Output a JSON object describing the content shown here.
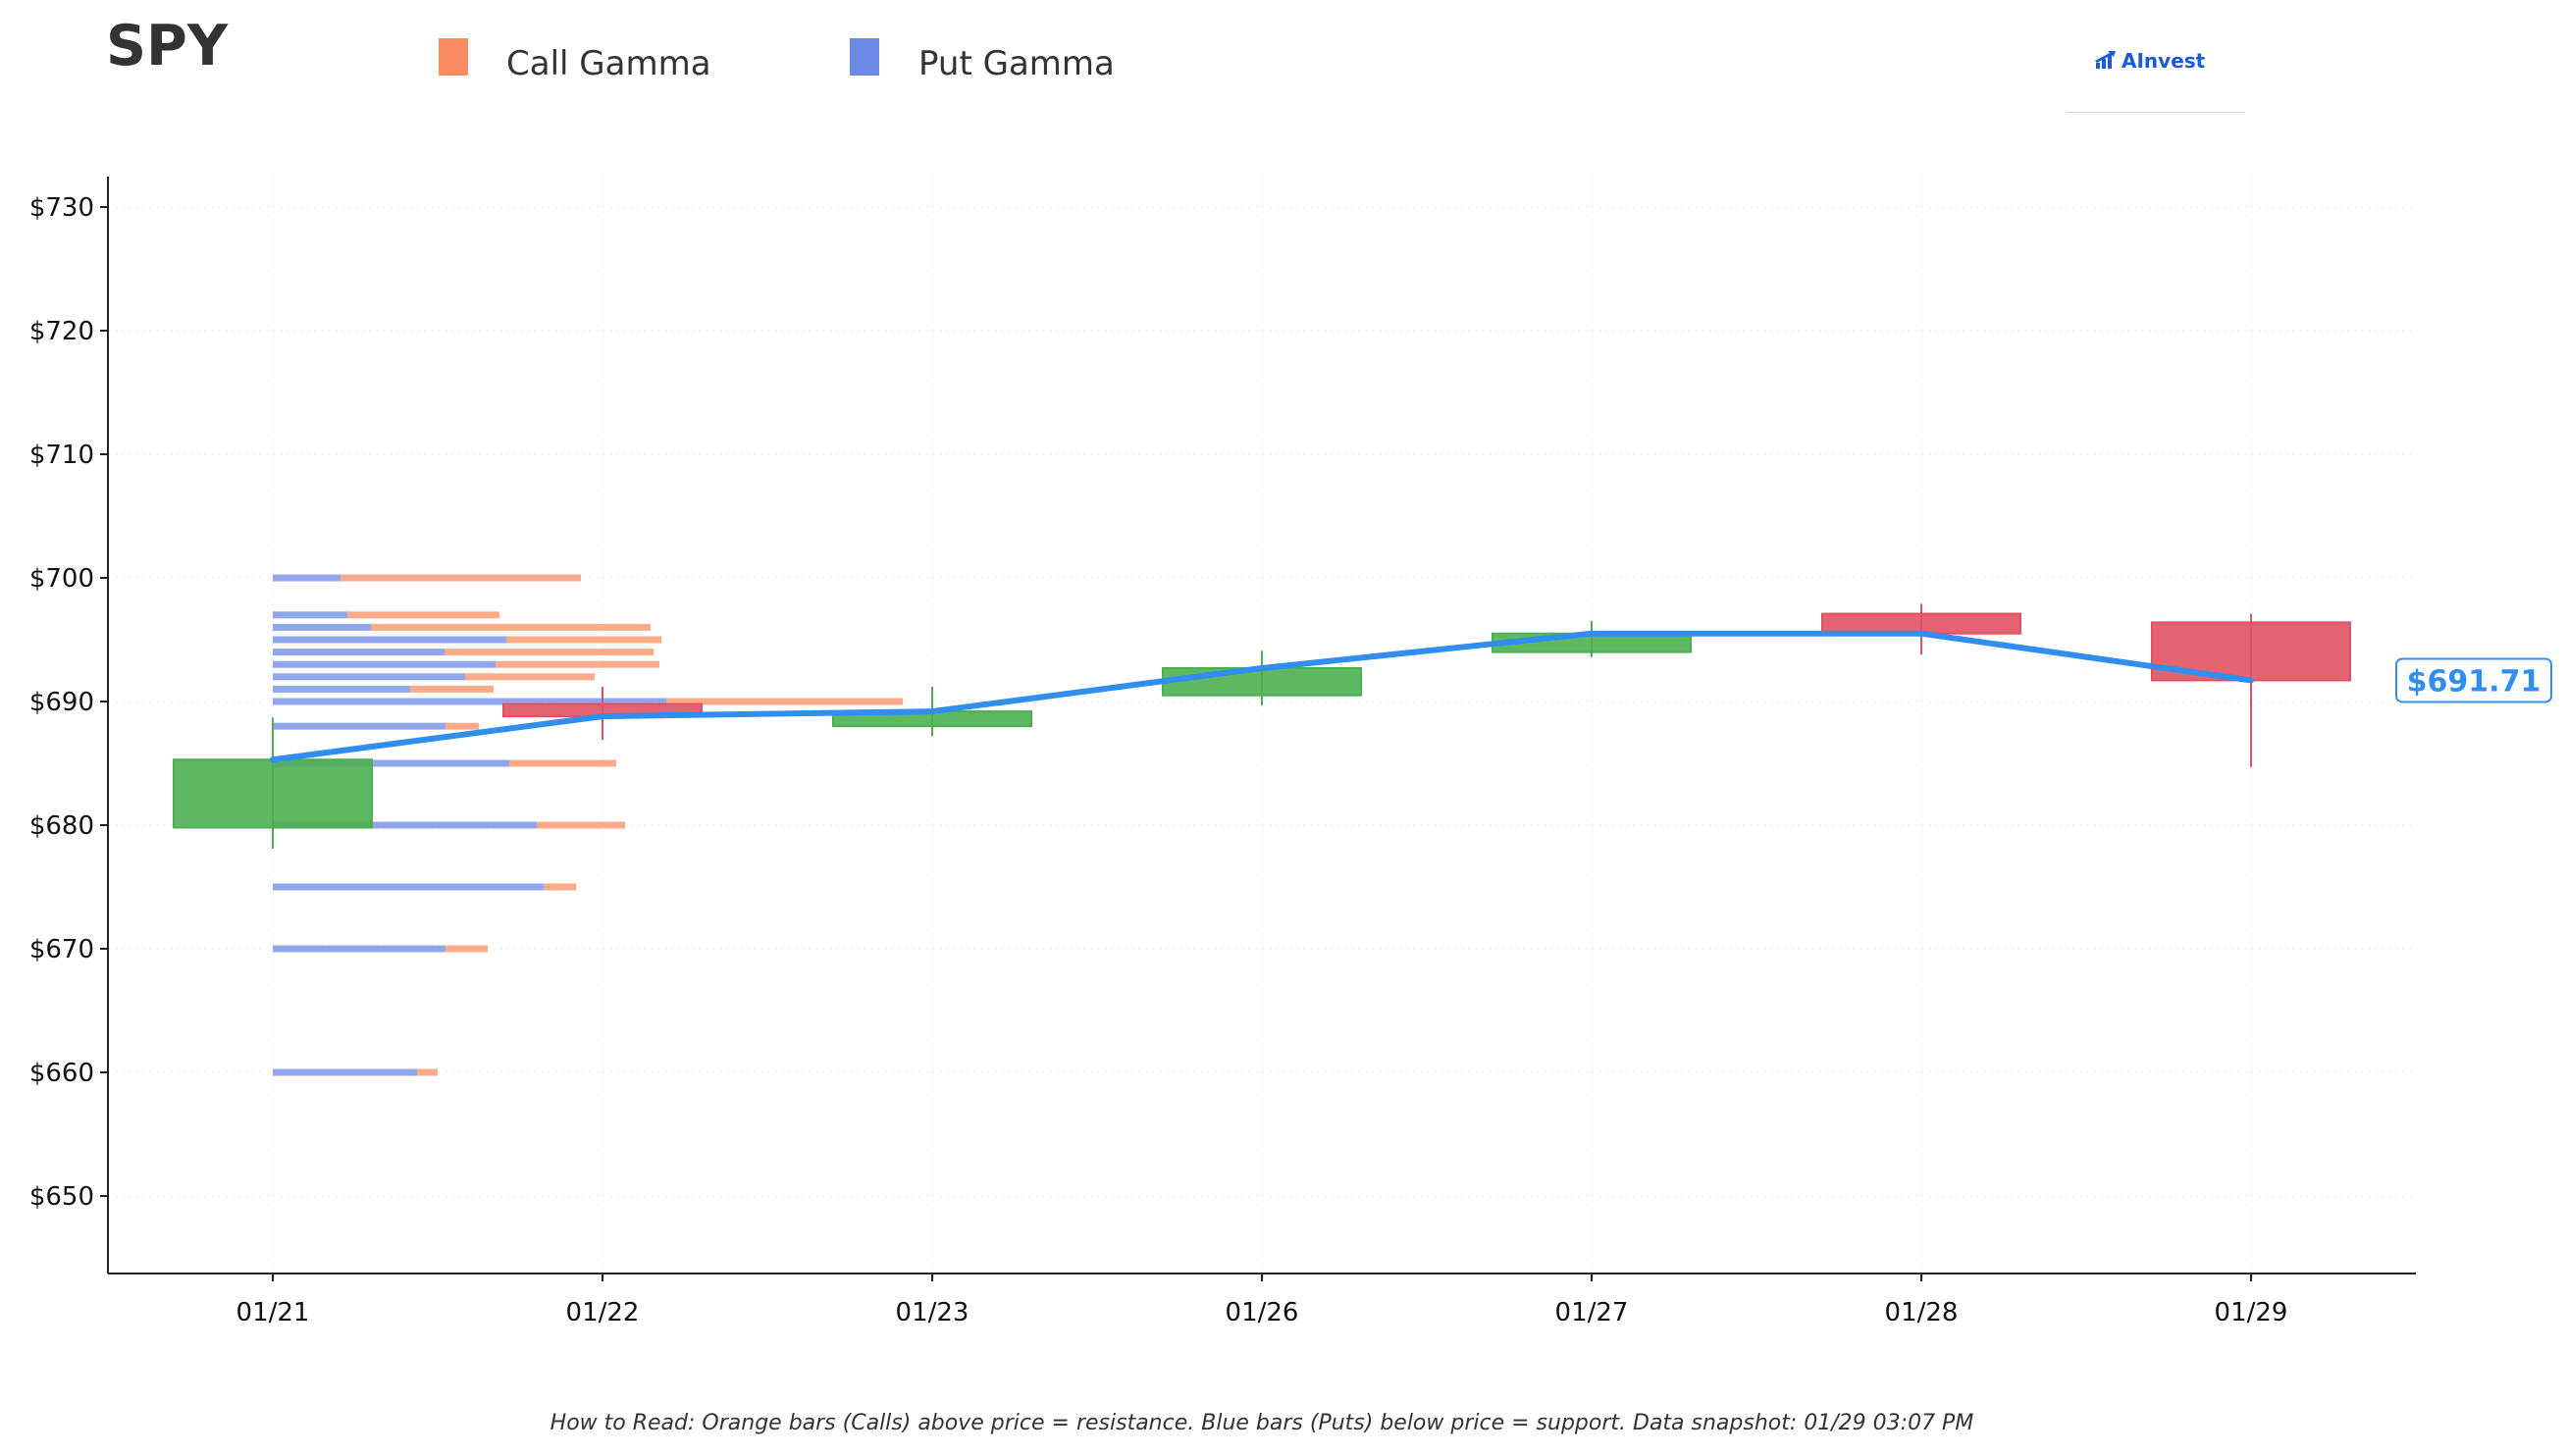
{
  "header": {
    "ticker": "SPY",
    "logo_text": "AInvest"
  },
  "legend": {
    "call_label": "Call Gamma",
    "put_label": "Put Gamma"
  },
  "footer": {
    "note": "How to Read: Orange bars (Calls) above price = resistance. Blue bars (Puts) below price = support. Data snapshot: 01/29 03:07 PM"
  },
  "colors": {
    "call": "#fc8d62",
    "put": "#6b8ae6",
    "up_candle": "#4caf50",
    "down_candle": "#e05263",
    "price_line": "#2f8ef0",
    "price_tag": "#2f8ef0",
    "logo": "#1a5ad6"
  },
  "chart_data": {
    "type": "candlestick",
    "title": "SPY",
    "categories": [
      "01/21",
      "01/22",
      "01/23",
      "01/26",
      "01/27",
      "01/28",
      "01/29"
    ],
    "y_ticks": [
      650,
      660,
      670,
      680,
      690,
      700,
      710,
      720,
      730
    ],
    "y_tick_labels": [
      "$650",
      "$660",
      "$670",
      "$680",
      "$690",
      "$700",
      "$710",
      "$720",
      "$730"
    ],
    "ylim": [
      643.5,
      732.5
    ],
    "grid": true,
    "legend_position": "top",
    "candles": [
      {
        "date": "01/21",
        "open": 679.8,
        "high": 688.7,
        "low": 678.1,
        "close": 685.3
      },
      {
        "date": "01/22",
        "open": 689.8,
        "high": 691.2,
        "low": 686.9,
        "close": 688.8
      },
      {
        "date": "01/23",
        "open": 688.0,
        "high": 691.2,
        "low": 687.2,
        "close": 689.2
      },
      {
        "date": "01/26",
        "open": 690.5,
        "high": 694.1,
        "low": 689.7,
        "close": 692.7
      },
      {
        "date": "01/27",
        "open": 694.0,
        "high": 696.5,
        "low": 693.6,
        "close": 695.5
      },
      {
        "date": "01/28",
        "open": 697.1,
        "high": 697.9,
        "low": 693.8,
        "close": 695.5
      },
      {
        "date": "01/29",
        "open": 696.4,
        "high": 697.1,
        "low": 684.7,
        "close": 691.71
      }
    ],
    "price_line": [
      685.3,
      688.8,
      689.2,
      692.7,
      695.5,
      695.5,
      691.71
    ],
    "last_price_label": "$691.71",
    "gamma_levels": [
      {
        "strike": 700,
        "put": 0.69,
        "call": 2.45
      },
      {
        "strike": 697,
        "put": 0.76,
        "call": 1.55
      },
      {
        "strike": 696,
        "put": 1.0,
        "call": 2.85
      },
      {
        "strike": 695,
        "put": 2.38,
        "call": 1.58
      },
      {
        "strike": 694,
        "put": 1.75,
        "call": 2.13
      },
      {
        "strike": 693,
        "put": 2.27,
        "call": 1.67
      },
      {
        "strike": 692,
        "put": 1.96,
        "call": 1.32
      },
      {
        "strike": 691,
        "put": 1.4,
        "call": 0.85
      },
      {
        "strike": 690,
        "put": 4.01,
        "call": 2.41
      },
      {
        "strike": 688,
        "put": 1.76,
        "call": 0.34
      },
      {
        "strike": 685,
        "put": 2.41,
        "call": 1.09
      },
      {
        "strike": 680,
        "put": 2.69,
        "call": 0.9
      },
      {
        "strike": 675,
        "put": 2.76,
        "call": 0.33
      },
      {
        "strike": 670,
        "put": 1.76,
        "call": 0.43
      },
      {
        "strike": 660,
        "put": 1.47,
        "call": 0.21
      }
    ]
  }
}
